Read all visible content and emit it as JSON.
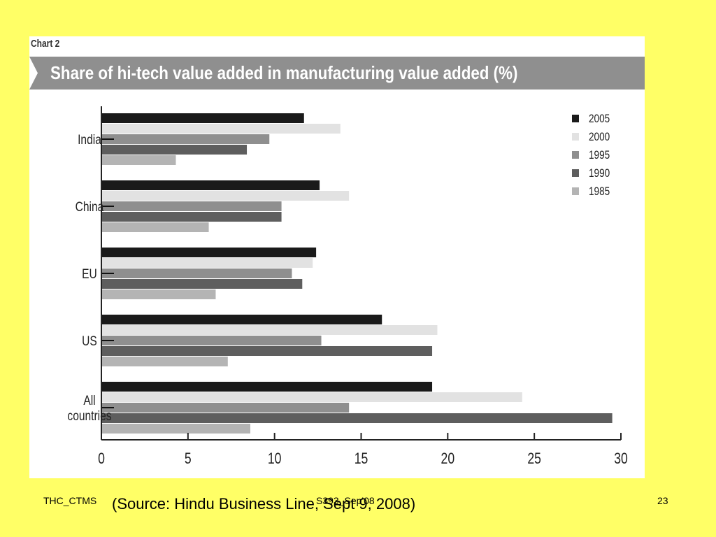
{
  "chart_label": "Chart 2",
  "chart_data": {
    "type": "bar",
    "orientation": "horizontal",
    "title": "Share of hi-tech value added in manufacturing value added (%)",
    "categories": [
      "India",
      "China",
      "EU",
      "US",
      "All countries"
    ],
    "series": [
      {
        "name": "2005",
        "color": "#1a1a1a",
        "values": [
          11.7,
          12.6,
          12.4,
          16.2,
          19.1
        ]
      },
      {
        "name": "2000",
        "color": "#e2e2e2",
        "values": [
          13.8,
          14.3,
          12.2,
          19.4,
          24.3
        ]
      },
      {
        "name": "1995",
        "color": "#8f8f8f",
        "values": [
          9.7,
          10.4,
          11.0,
          12.7,
          14.3
        ]
      },
      {
        "name": "1990",
        "color": "#5e5e5e",
        "values": [
          8.4,
          10.4,
          11.6,
          19.1,
          29.5
        ]
      },
      {
        "name": "1985",
        "color": "#b4b4b4",
        "values": [
          4.3,
          6.2,
          6.6,
          7.3,
          8.6
        ]
      }
    ],
    "xlim": [
      0,
      30
    ],
    "xticks": [
      "0",
      "5",
      "10",
      "15",
      "20",
      "25",
      "30"
    ],
    "legend_position": "top-right",
    "grid": false
  },
  "footer": {
    "left": "THC_CTMS",
    "center": "S393_Sep'08",
    "page_number": "23",
    "source": "(Source: Hindu Business Line, Sept 9, 2008)"
  }
}
